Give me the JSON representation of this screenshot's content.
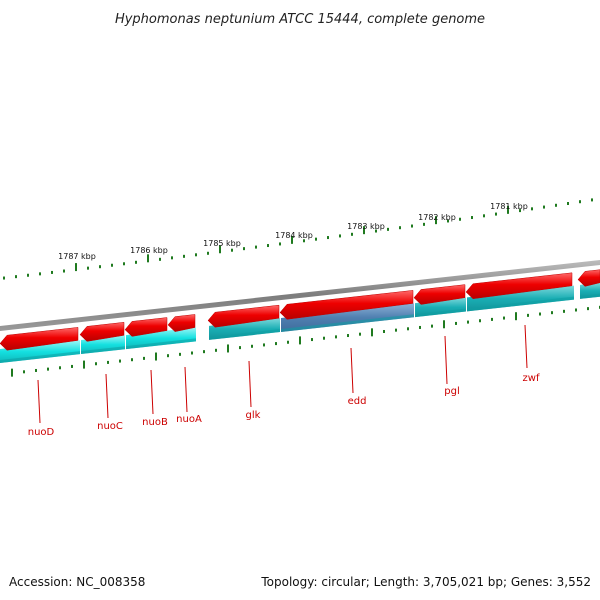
{
  "title": "Hyphomonas neptunium ATCC 15444, complete genome",
  "footer": {
    "accession": "Accession: NC_008358",
    "summary": "Topology: circular; Length: 3,705,021 bp; Genes: 3,552"
  },
  "scale_marks": [
    {
      "label": "1787 kbp"
    },
    {
      "label": "1786 kbp"
    },
    {
      "label": "1785 kbp"
    },
    {
      "label": "1784 kbp"
    },
    {
      "label": "1783 kbp"
    },
    {
      "label": "1782 kbp"
    },
    {
      "label": "1781 kbp"
    }
  ],
  "genes": [
    {
      "name": "nuoD"
    },
    {
      "name": "nuoC"
    },
    {
      "name": "nuoB"
    },
    {
      "name": "nuoA"
    },
    {
      "name": "glk"
    },
    {
      "name": "edd"
    },
    {
      "name": "pgl"
    },
    {
      "name": "zwf"
    }
  ],
  "colors": {
    "backbone": "#8a8a8a",
    "gene_arrow": "#ee0000",
    "cds_track": "#14d4d4",
    "cds_track_dark": "#18b0b4",
    "highlight": "#5a88b8",
    "tick": "#1f7a1f",
    "label": "#cc0000"
  }
}
